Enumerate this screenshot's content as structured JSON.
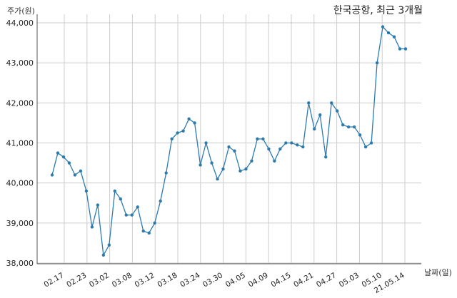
{
  "chart_data": {
    "type": "line",
    "title": "한국공항, 최근 3개월",
    "xlabel": "날짜(일)",
    "ylabel": "주가(원)",
    "ylim": [
      38000,
      44000
    ],
    "yticks": [
      "38,000",
      "39,000",
      "40,000",
      "41,000",
      "42,000",
      "43,000",
      "44,000"
    ],
    "xticks": [
      "02.17",
      "02.23",
      "03.02",
      "03.08",
      "03.12",
      "03.18",
      "03.24",
      "03.30",
      "04.05",
      "04.09",
      "04.15",
      "04.21",
      "04.27",
      "05.03",
      "05.10",
      "21.05.14"
    ],
    "grid": true,
    "series": [
      {
        "color": "#2b7bb0",
        "values": [
          40200,
          40750,
          40650,
          40500,
          40200,
          40300,
          39800,
          38900,
          39450,
          38200,
          38450,
          39800,
          39600,
          39200,
          39200,
          39400,
          38800,
          38750,
          39000,
          39550,
          40250,
          41100,
          41250,
          41300,
          41600,
          41500,
          40450,
          41000,
          40500,
          40100,
          40350,
          40900,
          40800,
          40300,
          40350,
          40550,
          41100,
          41100,
          40850,
          40550,
          40850,
          41000,
          41000,
          40950,
          40900,
          42000,
          41350,
          41700,
          40650,
          42000,
          41800,
          41450,
          41400,
          41400,
          41200,
          40900,
          41000,
          43000,
          43900,
          43750,
          43650,
          43350,
          43350
        ]
      }
    ]
  }
}
